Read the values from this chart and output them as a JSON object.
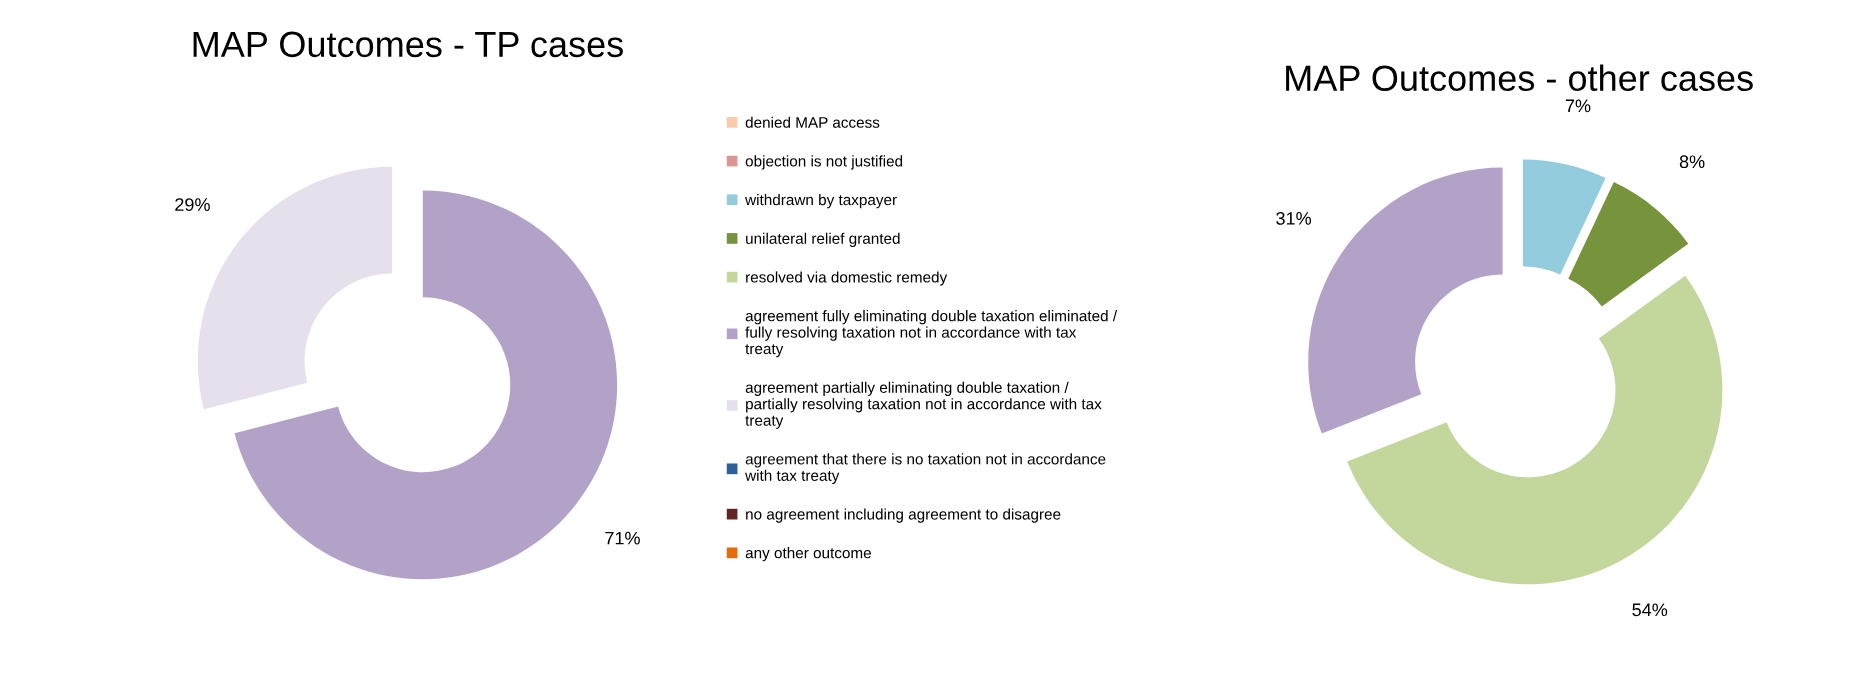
{
  "chart_data": [
    {
      "type": "donut",
      "title": "MAP Outcomes - TP cases",
      "legend": "right",
      "categories": [
        "denied MAP access",
        "objection is not justified",
        "withdrawn by taxpayer",
        "unilateral relief granted",
        "resolved via domestic remedy",
        "agreement fully eliminating double taxation eliminated / fully resolving taxation not in accordance with tax treaty",
        "agreement partially eliminating double taxation / partially resolving taxation not in accordance with tax treaty",
        "agreement that there is no taxation not in accordance with tax treaty",
        "no agreement including agreement to disagree",
        "any other outcome"
      ],
      "values": [
        0,
        0,
        0,
        0,
        0,
        71,
        29,
        0,
        0,
        0
      ],
      "value_labels": [
        null,
        null,
        null,
        null,
        null,
        "71%",
        "29%",
        null,
        null,
        null
      ],
      "colors": [
        "#f8cbad",
        "#d99694",
        "#93cddd",
        "#77933c",
        "#c3d69b",
        "#b3a2c7",
        "#e6e0ec",
        "#2e5f99",
        "#632523",
        "#e46c0a"
      ]
    },
    {
      "type": "donut",
      "title": "MAP Outcomes - other cases",
      "categories": [
        null,
        null,
        null,
        null
      ],
      "values": [
        7,
        8,
        54,
        31
      ],
      "value_labels": [
        "7%",
        "8%",
        "54%",
        "31%"
      ],
      "colors": [
        "#93cddd",
        "#77933c",
        "#c3d69b",
        "#b3a2c7"
      ]
    }
  ]
}
